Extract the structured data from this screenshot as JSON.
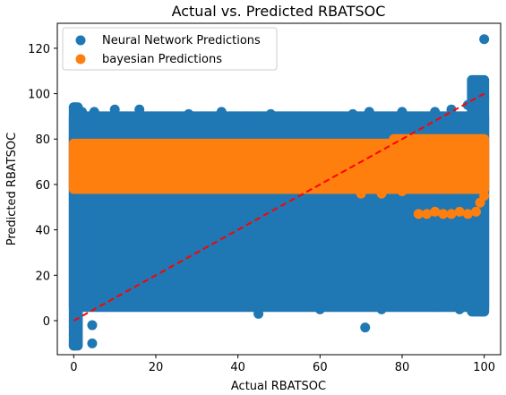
{
  "chart_data": {
    "type": "scatter",
    "title": "Actual vs. Predicted RBATSOC",
    "xlabel": "Actual RBATSOC",
    "ylabel": "Predicted RBATSOC",
    "xlim": [
      -4,
      104
    ],
    "ylim": [
      -15,
      131
    ],
    "xticks": [
      0,
      20,
      40,
      60,
      80,
      100
    ],
    "yticks": [
      0,
      20,
      40,
      60,
      80,
      100,
      120
    ],
    "grid": false,
    "legend_position": "top-left",
    "series": [
      {
        "name": "Neural Network Predictions",
        "color": "#1f77b4",
        "bands": [
          {
            "x": [
              0,
              100
            ],
            "y": [
              6,
              90
            ]
          },
          {
            "x": [
              0,
              1
            ],
            "y": [
              -11,
              94
            ]
          },
          {
            "x": [
              97,
              100
            ],
            "y": [
              4,
              106
            ]
          }
        ],
        "points": [
          [
            0,
            -11
          ],
          [
            0,
            -10
          ],
          [
            0,
            -6
          ],
          [
            0,
            -3
          ],
          [
            0,
            0
          ],
          [
            0.5,
            2
          ],
          [
            1,
            5
          ],
          [
            4.5,
            -2
          ],
          [
            4.5,
            -10
          ],
          [
            71,
            -3
          ],
          [
            100,
            124
          ],
          [
            99.5,
            4
          ],
          [
            98,
            101
          ],
          [
            98,
            106
          ],
          [
            0,
            94
          ],
          [
            2,
            92
          ],
          [
            5,
            92
          ],
          [
            10,
            93
          ],
          [
            16,
            93
          ],
          [
            28,
            91
          ],
          [
            36,
            92
          ],
          [
            42,
            90
          ],
          [
            48,
            91
          ],
          [
            55,
            90
          ],
          [
            60,
            90
          ],
          [
            68,
            91
          ],
          [
            72,
            92
          ],
          [
            80,
            92
          ],
          [
            88,
            92
          ],
          [
            92,
            93
          ],
          [
            96,
            95
          ],
          [
            98,
            97
          ],
          [
            100,
            98
          ],
          [
            45,
            3
          ],
          [
            60,
            5
          ],
          [
            75,
            5
          ],
          [
            88,
            6
          ],
          [
            94,
            5
          ]
        ]
      },
      {
        "name": "bayesian Predictions",
        "color": "#ff7f0e",
        "bands": [
          {
            "x": [
              0,
              100
            ],
            "y": [
              58,
              78
            ]
          },
          {
            "x": [
              78,
              100
            ],
            "y": [
              58,
              80
            ]
          }
        ],
        "points": [
          [
            84,
            47
          ],
          [
            86,
            47
          ],
          [
            88,
            48
          ],
          [
            90,
            47
          ],
          [
            92,
            47
          ],
          [
            94,
            48
          ],
          [
            96,
            47
          ],
          [
            98,
            48
          ],
          [
            99,
            52
          ],
          [
            100,
            55
          ],
          [
            100,
            58
          ],
          [
            100,
            62
          ],
          [
            100,
            66
          ],
          [
            100,
            70
          ],
          [
            100,
            74
          ],
          [
            100,
            78
          ],
          [
            70,
            56
          ],
          [
            75,
            56
          ],
          [
            80,
            57
          ],
          [
            99,
            80
          ]
        ]
      }
    ],
    "reference_line": {
      "x": [
        0,
        100
      ],
      "y": [
        0,
        100
      ],
      "color": "#ff0000",
      "style": "dashed"
    }
  }
}
